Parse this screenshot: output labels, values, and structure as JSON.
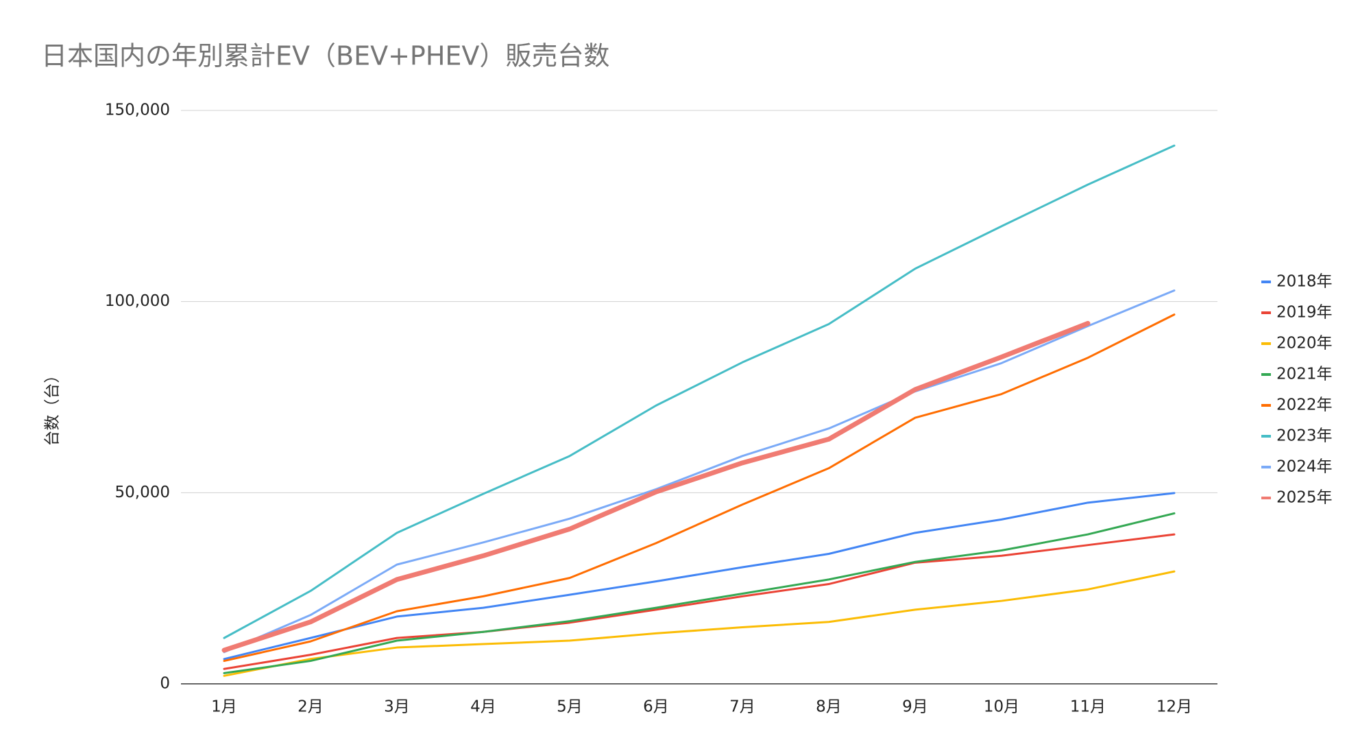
{
  "chart_data": {
    "type": "line",
    "title": "日本国内の年別累計EV（BEV+PHEV）販売台数",
    "y_label": "台数（台）",
    "categories": [
      "1月",
      "2月",
      "3月",
      "4月",
      "5月",
      "6月",
      "7月",
      "8月",
      "9月",
      "10月",
      "11月",
      "12月"
    ],
    "series": [
      {
        "name": "2018年",
        "color": "#4285f4",
        "values": [
          6500,
          12000,
          17600,
          19900,
          23300,
          26800,
          30500,
          34000,
          39500,
          43000,
          47400,
          49900
        ]
      },
      {
        "name": "2019年",
        "color": "#ea4335",
        "values": [
          3900,
          7600,
          12000,
          13600,
          16000,
          19400,
          22900,
          26100,
          31700,
          33500,
          36300,
          39100
        ]
      },
      {
        "name": "2020年",
        "color": "#fbbc04",
        "values": [
          2100,
          6500,
          9500,
          10400,
          11300,
          13200,
          14800,
          16200,
          19400,
          21700,
          24700,
          29400
        ]
      },
      {
        "name": "2021年",
        "color": "#34a853",
        "values": [
          2800,
          6000,
          11300,
          13600,
          16400,
          19900,
          23600,
          27300,
          31900,
          34900,
          39100,
          44600
        ]
      },
      {
        "name": "2022年",
        "color": "#ff6d01",
        "values": [
          6000,
          11100,
          19000,
          22900,
          27700,
          36800,
          46900,
          56400,
          69600,
          75800,
          85300,
          96600
        ]
      },
      {
        "name": "2023年",
        "color": "#46bdc6",
        "values": [
          12000,
          24300,
          39500,
          49700,
          59600,
          72800,
          84100,
          94100,
          108600,
          119700,
          130600,
          140800
        ]
      },
      {
        "name": "2024年",
        "color": "#7baaf7",
        "values": [
          8300,
          18000,
          31200,
          37000,
          43200,
          50900,
          59600,
          66800,
          76500,
          83900,
          93600,
          102900
        ]
      },
      {
        "name": "2025年",
        "color": "#f07b72",
        "values": [
          8800,
          16200,
          27300,
          33500,
          40500,
          50200,
          57800,
          64000,
          77000,
          85500,
          94300,
          null
        ]
      }
    ],
    "ylim": [
      0,
      150000
    ],
    "yticks": [
      0,
      {
        "value": 50000,
        "label": "50,000"
      },
      {
        "value": 100000,
        "label": "100,000"
      },
      {
        "value": 150000,
        "label": "150,000"
      }
    ],
    "grid": true,
    "legend": "right"
  }
}
